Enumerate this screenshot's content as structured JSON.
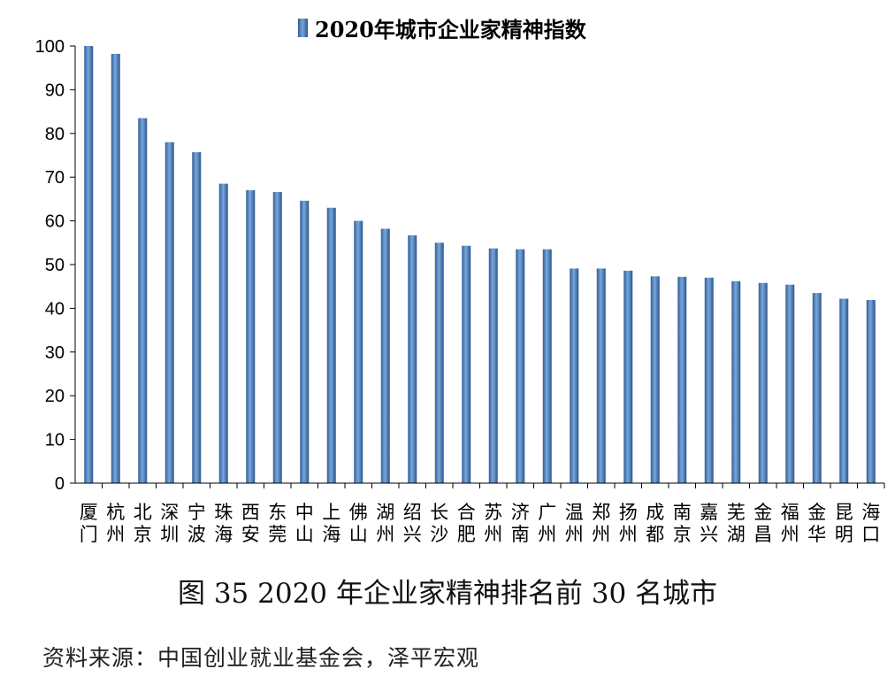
{
  "chart_data": {
    "type": "bar",
    "title": "2020年城市企业家精神指数",
    "legend": "2020年城市企业家精神指数",
    "legend_position": "top",
    "xlabel": "",
    "ylabel": "",
    "ylim": [
      0,
      100
    ],
    "yticks": [
      0,
      10,
      20,
      30,
      40,
      50,
      60,
      70,
      80,
      90,
      100
    ],
    "categories": [
      "厦门",
      "杭州",
      "北京",
      "深圳",
      "宁波",
      "珠海",
      "西安",
      "东莞",
      "中山",
      "上海",
      "佛山",
      "湖州",
      "绍兴",
      "长沙",
      "合肥",
      "苏州",
      "济南",
      "广州",
      "温州",
      "郑州",
      "扬州",
      "成都",
      "南京",
      "嘉兴",
      "芜湖",
      "金昌",
      "福州",
      "金华",
      "昆明",
      "海口"
    ],
    "values": [
      100,
      98.2,
      83.5,
      78,
      75.7,
      68.5,
      67,
      66.6,
      64.6,
      63,
      60,
      58.2,
      56.7,
      55,
      54.3,
      53.7,
      53.5,
      53.5,
      49.1,
      49.1,
      48.6,
      47.3,
      47.2,
      47,
      46.2,
      45.8,
      45.4,
      43.5,
      42.2,
      41.9
    ],
    "bar_color": "#4F81BD"
  },
  "caption": "图 35  2020 年企业家精神排名前 30 名城市",
  "source": "资料来源：中国创业就业基金会，泽平宏观"
}
